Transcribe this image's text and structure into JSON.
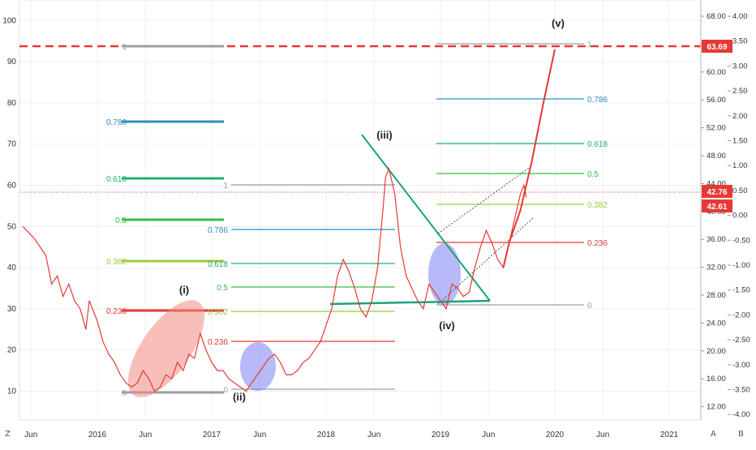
{
  "chart_data": {
    "type": "line",
    "title": "",
    "xlabel": "",
    "ylabel": "",
    "x_ticks": [
      "Jun",
      "2016",
      "Jun",
      "2017",
      "Jun",
      "2018",
      "Jun",
      "2019",
      "Jun",
      "2020",
      "Jun",
      "2021"
    ],
    "left_axis": {
      "ticks": [
        10,
        20,
        30,
        40,
        50,
        60,
        70,
        80,
        90,
        100
      ],
      "range": [
        3,
        105
      ]
    },
    "right_axis_price": {
      "ticks": [
        "68.00",
        "64.00",
        "60.00",
        "56.00",
        "52.00",
        "48.00",
        "44.00",
        "40.00",
        "36.00",
        "32.00",
        "28.00",
        "24.00",
        "20.00",
        "16.00",
        "12.00"
      ]
    },
    "right_axis_log": {
      "ticks": [
        "4.00",
        "3.50",
        "3.00",
        "2.50",
        "2.00",
        "1.50",
        "1.00",
        "0.50",
        "0.00",
        "-0.50",
        "-1.00",
        "-1.50",
        "-2.00",
        "-2.50",
        "-3.00",
        "-3.50",
        "-4.00"
      ]
    },
    "price_labels": [
      {
        "text": "63.69",
        "color": "#e53935"
      },
      {
        "text": "42.76",
        "color": "#e53935"
      },
      {
        "text": "42.61",
        "color": "#e53935"
      }
    ],
    "wave_labels": [
      "(i)",
      "(ii)",
      "(iii)",
      "(iv)",
      "(v)"
    ],
    "fib_sets": [
      {
        "name": "fib-set-1",
        "levels": [
          {
            "label": "1",
            "color": "#9e9e9e"
          },
          {
            "label": "0.786",
            "color": "#2a8fc0"
          },
          {
            "label": "0.618",
            "color": "#20b070"
          },
          {
            "label": "0.5",
            "color": "#35c040"
          },
          {
            "label": "0.382",
            "color": "#9ccc3c"
          },
          {
            "label": "0.236",
            "color": "#e53935"
          },
          {
            "label": "0",
            "color": "#9e9e9e"
          }
        ]
      },
      {
        "name": "fib-set-2",
        "levels": [
          {
            "label": "1",
            "color": "#9e9e9e"
          },
          {
            "label": "0.786",
            "color": "#2a8fc0"
          },
          {
            "label": "0.618",
            "color": "#20b070"
          },
          {
            "label": "0.5",
            "color": "#35c040"
          },
          {
            "label": "0.382",
            "color": "#9ccc3c"
          },
          {
            "label": "0.236",
            "color": "#e53935"
          },
          {
            "label": "0",
            "color": "#9e9e9e"
          }
        ]
      },
      {
        "name": "fib-set-3",
        "levels": [
          {
            "label": "1",
            "color": "#9e9e9e"
          },
          {
            "label": "0.786",
            "color": "#2a8fc0"
          },
          {
            "label": "0.618",
            "color": "#20b070"
          },
          {
            "label": "0.5",
            "color": "#35c040"
          },
          {
            "label": "0.382",
            "color": "#9ccc3c"
          },
          {
            "label": "0.236",
            "color": "#e53935"
          },
          {
            "label": "0",
            "color": "#9e9e9e"
          }
        ]
      }
    ],
    "series": [
      {
        "color": "#e53935",
        "values": [
          [
            2015.35,
            50
          ],
          [
            2015.45,
            47
          ],
          [
            2015.55,
            43
          ],
          [
            2015.6,
            36
          ],
          [
            2015.65,
            38
          ],
          [
            2015.7,
            33
          ],
          [
            2015.75,
            36
          ],
          [
            2015.8,
            32
          ],
          [
            2015.85,
            30
          ],
          [
            2015.9,
            25
          ],
          [
            2015.93,
            32
          ],
          [
            2016.0,
            27
          ],
          [
            2016.05,
            22
          ],
          [
            2016.1,
            19
          ],
          [
            2016.15,
            17
          ],
          [
            2016.2,
            14
          ],
          [
            2016.25,
            12
          ],
          [
            2016.3,
            11
          ],
          [
            2016.35,
            12
          ],
          [
            2016.4,
            15
          ],
          [
            2016.45,
            13
          ],
          [
            2016.5,
            10
          ],
          [
            2016.55,
            11
          ],
          [
            2016.6,
            14
          ],
          [
            2016.65,
            13
          ],
          [
            2016.7,
            17
          ],
          [
            2016.75,
            15
          ],
          [
            2016.8,
            19
          ],
          [
            2016.85,
            18
          ],
          [
            2016.9,
            24
          ],
          [
            2016.95,
            20
          ],
          [
            2017.0,
            17
          ],
          [
            2017.05,
            15
          ],
          [
            2017.1,
            15
          ],
          [
            2017.15,
            13
          ],
          [
            2017.2,
            12
          ],
          [
            2017.25,
            11
          ],
          [
            2017.3,
            10
          ],
          [
            2017.35,
            12
          ],
          [
            2017.4,
            14
          ],
          [
            2017.45,
            16
          ],
          [
            2017.5,
            18
          ],
          [
            2017.55,
            19
          ],
          [
            2017.6,
            17
          ],
          [
            2017.65,
            14
          ],
          [
            2017.7,
            14
          ],
          [
            2017.75,
            15
          ],
          [
            2017.8,
            17
          ],
          [
            2017.85,
            18
          ],
          [
            2017.9,
            20
          ],
          [
            2017.95,
            22
          ],
          [
            2018.0,
            26
          ],
          [
            2018.05,
            30
          ],
          [
            2018.1,
            38
          ],
          [
            2018.15,
            42
          ],
          [
            2018.2,
            39
          ],
          [
            2018.25,
            35
          ],
          [
            2018.3,
            30
          ],
          [
            2018.35,
            28
          ],
          [
            2018.4,
            32
          ],
          [
            2018.45,
            40
          ],
          [
            2018.5,
            55
          ],
          [
            2018.52,
            62
          ],
          [
            2018.55,
            64
          ],
          [
            2018.6,
            58
          ],
          [
            2018.65,
            45
          ],
          [
            2018.7,
            38
          ],
          [
            2018.75,
            35
          ],
          [
            2018.8,
            32
          ],
          [
            2018.85,
            30
          ],
          [
            2018.9,
            36
          ],
          [
            2018.95,
            34
          ],
          [
            2019.0,
            32
          ],
          [
            2019.05,
            30
          ],
          [
            2019.1,
            36
          ],
          [
            2019.15,
            35
          ],
          [
            2019.2,
            33
          ],
          [
            2019.25,
            34
          ],
          [
            2019.3,
            40
          ],
          [
            2019.35,
            45
          ],
          [
            2019.4,
            49
          ],
          [
            2019.45,
            46
          ],
          [
            2019.5,
            42
          ],
          [
            2019.55,
            40
          ],
          [
            2019.6,
            46
          ],
          [
            2019.65,
            52
          ],
          [
            2019.7,
            58
          ],
          [
            2019.73,
            60
          ],
          [
            2019.75,
            57
          ]
        ]
      },
      {
        "color": "#e53935",
        "values": [
          [
            2019.55,
            40
          ],
          [
            2019.6,
            46
          ],
          [
            2019.7,
            54
          ],
          [
            2019.8,
            66
          ],
          [
            2019.9,
            80
          ],
          [
            2020.0,
            93
          ]
        ]
      }
    ]
  }
}
